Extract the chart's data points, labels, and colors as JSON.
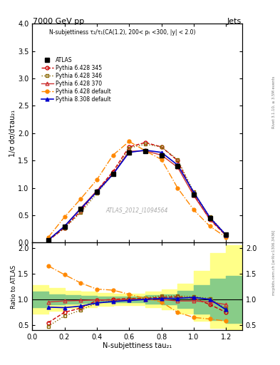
{
  "title_top": "7000 GeV pp",
  "title_right": "Jets",
  "right_label": "mcplots.cern.ch [arXiv:1306.3436]",
  "right_label2": "Rivet 3.1.10, ≥ 3.5M events",
  "subtitle": "N-subjettiness τ₂/τ₁(CA(1.2), 200< pₜ <300, |y| < 2.0)",
  "watermark": "ATLAS_2012_I1094564",
  "ylabel_main": "1/σ dσ/dτau₂₁",
  "ylabel_ratio": "Ratio to ATLAS",
  "xlabel": "N-subjettiness tau₂₁",
  "xlim": [
    0,
    1.3
  ],
  "ylim_main": [
    0,
    4
  ],
  "ylim_ratio": [
    0.4,
    2.1
  ],
  "x": [
    0.1,
    0.2,
    0.3,
    0.4,
    0.5,
    0.6,
    0.7,
    0.8,
    0.9,
    1.0,
    1.1,
    1.2
  ],
  "atlas_y": [
    0.05,
    0.29,
    0.62,
    0.93,
    1.25,
    1.65,
    1.67,
    1.6,
    1.4,
    0.88,
    0.45,
    0.15
  ],
  "p6_345_y": [
    0.04,
    0.27,
    0.58,
    0.95,
    1.3,
    1.75,
    1.83,
    1.75,
    1.5,
    0.88,
    0.42,
    0.13
  ],
  "p6_346_y": [
    0.04,
    0.27,
    0.55,
    0.9,
    1.25,
    1.73,
    1.8,
    1.75,
    1.52,
    0.93,
    0.47,
    0.15
  ],
  "p6_370_y": [
    0.05,
    0.3,
    0.63,
    0.95,
    1.26,
    1.67,
    1.68,
    1.6,
    1.38,
    0.86,
    0.43,
    0.14
  ],
  "p6_def_y": [
    0.1,
    0.47,
    0.8,
    1.15,
    1.6,
    1.85,
    1.68,
    1.52,
    1.0,
    0.6,
    0.3,
    0.1
  ],
  "p8_def_y": [
    0.05,
    0.3,
    0.62,
    0.93,
    1.25,
    1.65,
    1.69,
    1.65,
    1.42,
    0.92,
    0.46,
    0.14
  ],
  "p6_345_ratio": [
    0.55,
    0.75,
    0.83,
    0.98,
    1.0,
    1.02,
    1.02,
    1.04,
    1.05,
    1.02,
    0.9,
    0.75
  ],
  "p6_346_ratio": [
    0.48,
    0.68,
    0.79,
    0.93,
    0.97,
    1.01,
    1.03,
    1.07,
    1.07,
    1.05,
    1.02,
    0.82
  ],
  "p6_370_ratio": [
    0.95,
    0.97,
    0.98,
    0.99,
    0.99,
    1.0,
    1.0,
    1.0,
    0.97,
    0.97,
    0.95,
    0.9
  ],
  "p6_def_ratio": [
    1.65,
    1.48,
    1.32,
    1.2,
    1.18,
    1.1,
    1.02,
    0.95,
    0.75,
    0.65,
    0.62,
    0.58
  ],
  "p8_def_ratio": [
    0.85,
    0.84,
    0.87,
    0.93,
    0.96,
    0.98,
    1.0,
    1.02,
    1.02,
    1.04,
    1.0,
    0.8
  ],
  "yellow_band_x": [
    0.05,
    0.15,
    0.25,
    0.35,
    0.45,
    0.55,
    0.65,
    0.75,
    0.85,
    0.95,
    1.05,
    1.15,
    1.25
  ],
  "yellow_band_lo": [
    0.72,
    0.78,
    0.83,
    0.85,
    0.87,
    0.89,
    0.89,
    0.85,
    0.8,
    0.72,
    0.58,
    0.44,
    0.38
  ],
  "yellow_band_hi": [
    1.28,
    1.22,
    1.17,
    1.15,
    1.13,
    1.11,
    1.11,
    1.15,
    1.2,
    1.3,
    1.55,
    1.9,
    2.05
  ],
  "green_band_lo": [
    0.85,
    0.9,
    0.92,
    0.93,
    0.94,
    0.95,
    0.95,
    0.92,
    0.9,
    0.83,
    0.72,
    0.6,
    0.54
  ],
  "green_band_hi": [
    1.15,
    1.1,
    1.08,
    1.07,
    1.06,
    1.05,
    1.05,
    1.08,
    1.1,
    1.17,
    1.28,
    1.4,
    1.46
  ],
  "color_atlas": "#000000",
  "color_p6_345": "#cc0000",
  "color_p6_346": "#886600",
  "color_p6_370": "#cc3333",
  "color_p6_def": "#ff8800",
  "color_p8_def": "#0000cc",
  "color_yellow": "#ffff88",
  "color_green": "#88cc88",
  "bg_color": "#ffffff"
}
